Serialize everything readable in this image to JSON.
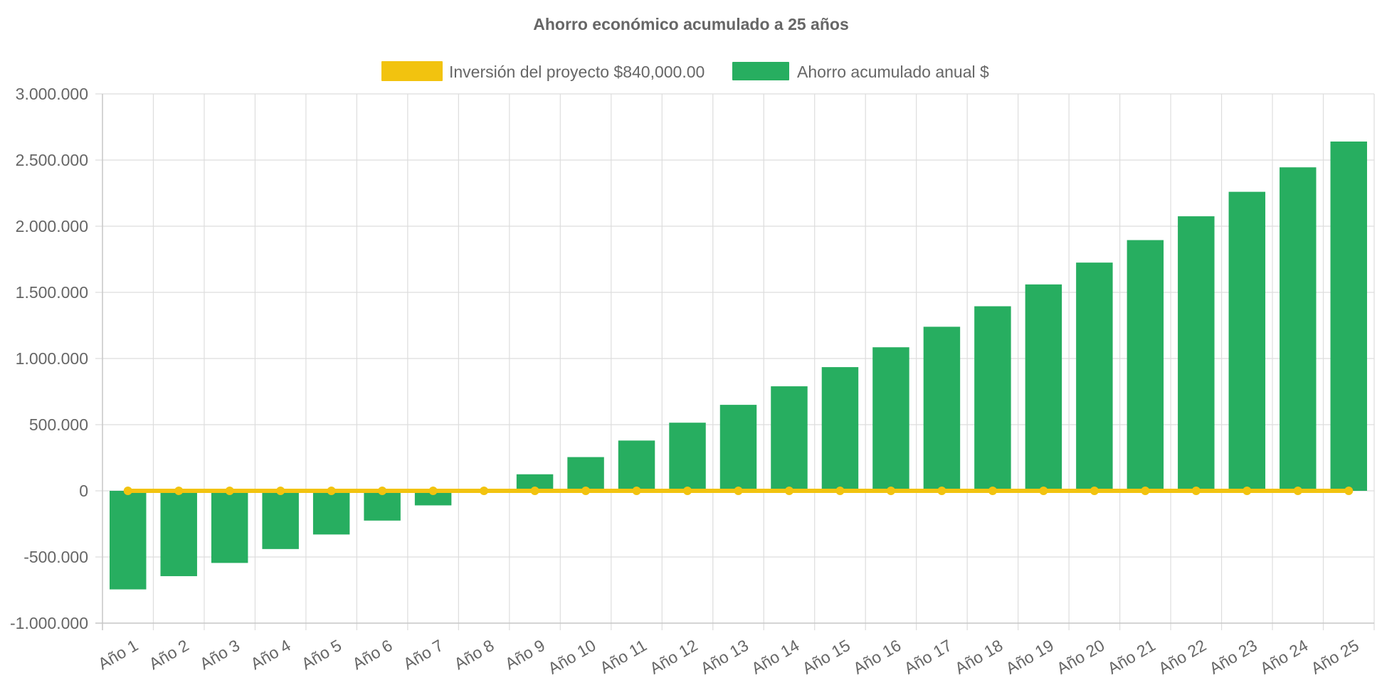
{
  "chart_data": {
    "type": "bar",
    "title": "Ahorro económico acumulado a 25 años",
    "categories": [
      "Año 1",
      "Año 2",
      "Año 3",
      "Año 4",
      "Año 5",
      "Año 6",
      "Año 7",
      "Año 8",
      "Año 9",
      "Año 10",
      "Año 11",
      "Año 12",
      "Año 13",
      "Año 14",
      "Año 15",
      "Año 16",
      "Año 17",
      "Año 18",
      "Año 19",
      "Año 20",
      "Año 21",
      "Año 22",
      "Año 23",
      "Año 24",
      "Año 25"
    ],
    "series": [
      {
        "name": "Inversión del proyecto $840,000.00",
        "type": "line",
        "color": "#f2c30f",
        "values": [
          0,
          0,
          0,
          0,
          0,
          0,
          0,
          0,
          0,
          0,
          0,
          0,
          0,
          0,
          0,
          0,
          0,
          0,
          0,
          0,
          0,
          0,
          0,
          0,
          0
        ]
      },
      {
        "name": "Ahorro acumulado anual $",
        "type": "bar",
        "color": "#27ae60",
        "values": [
          -745000,
          -645000,
          -545000,
          -440000,
          -330000,
          -225000,
          -110000,
          0,
          125000,
          255000,
          380000,
          515000,
          650000,
          790000,
          935000,
          1085000,
          1240000,
          1395000,
          1560000,
          1725000,
          1895000,
          2075000,
          2260000,
          2445000,
          2640000
        ]
      }
    ],
    "ylim": [
      -1000000,
      3000000
    ],
    "yticks": [
      3000000,
      2500000,
      2000000,
      1500000,
      1000000,
      500000,
      0,
      -500000,
      -1000000
    ],
    "ytick_labels": [
      "3.000.000",
      "2.500.000",
      "2.000.000",
      "1.500.000",
      "1.000.000",
      "500.000",
      "0",
      "-500.000",
      "-1.000.000"
    ],
    "xlabel": "",
    "ylabel": "",
    "grid": true,
    "legend_position": "top-center",
    "x_tick_rotation": -30
  }
}
